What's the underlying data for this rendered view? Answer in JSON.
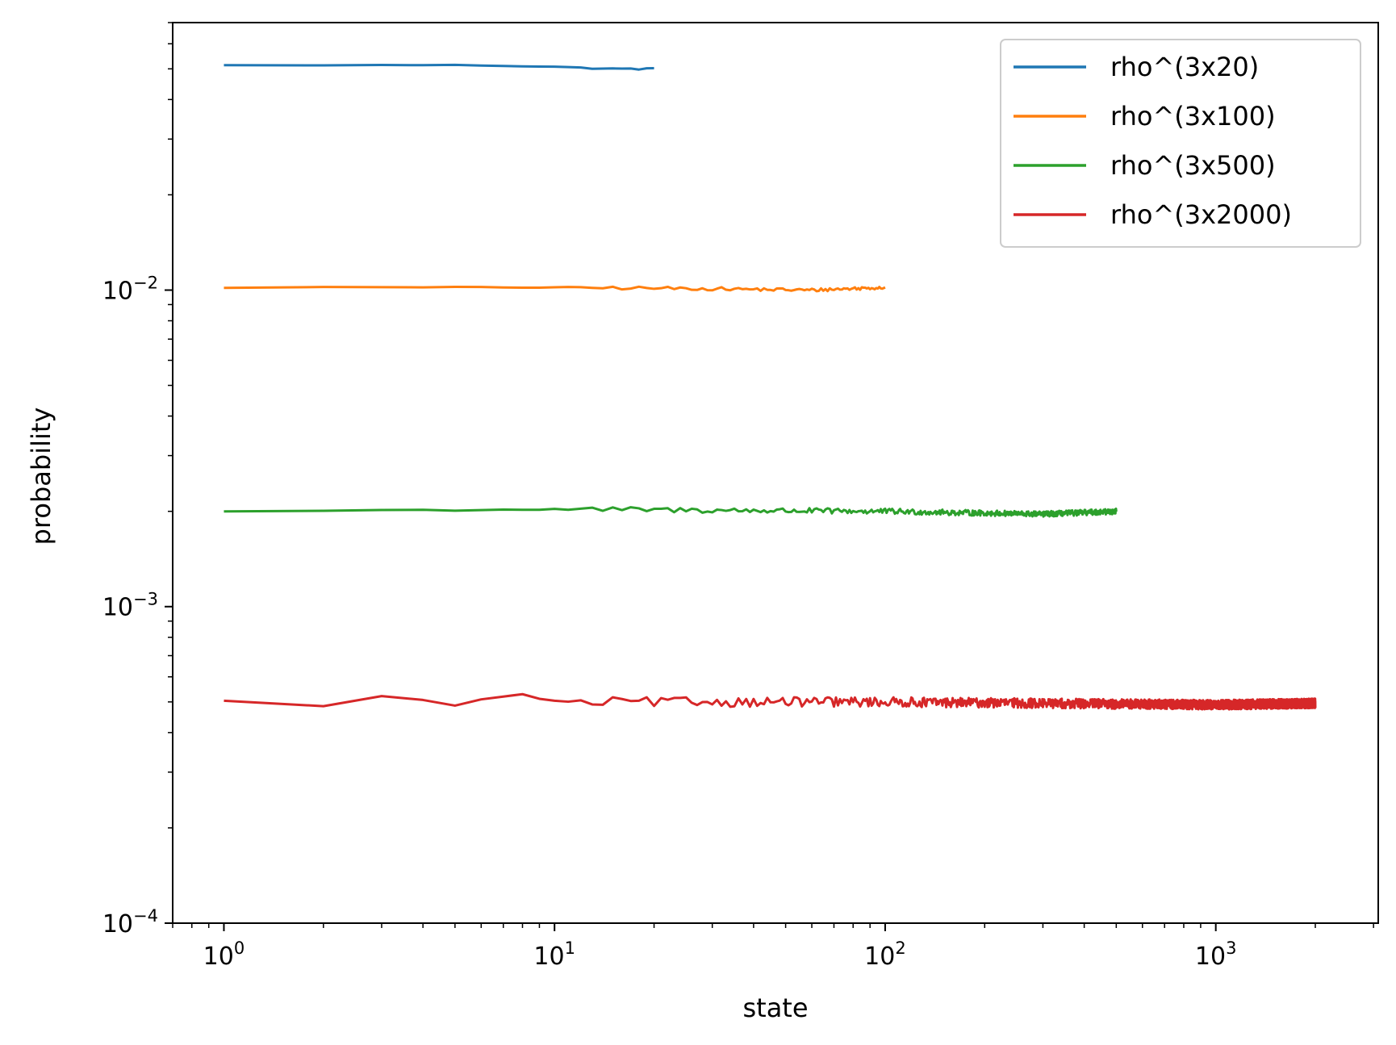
{
  "chart_data": {
    "type": "line",
    "xlabel": "state",
    "ylabel": "probability",
    "xscale": "log",
    "yscale": "log",
    "xlim": [
      0.7,
      3100
    ],
    "ylim": [
      0.0001,
      0.07
    ],
    "x_major_ticks": [
      {
        "value": 1,
        "base": "10",
        "exp": "0"
      },
      {
        "value": 10,
        "base": "10",
        "exp": "1"
      },
      {
        "value": 100,
        "base": "10",
        "exp": "2"
      },
      {
        "value": 1000,
        "base": "10",
        "exp": "3"
      }
    ],
    "y_major_ticks": [
      {
        "value": 0.0001,
        "base": "10",
        "exp": "−4"
      },
      {
        "value": 0.001,
        "base": "10",
        "exp": "−3"
      },
      {
        "value": 0.01,
        "base": "10",
        "exp": "−2"
      }
    ],
    "legend_position": "top-right",
    "series": [
      {
        "name": "rho^(3x20)",
        "color": "#1f77b4",
        "n": 20,
        "level": 0.0513,
        "anchors": [
          [
            1,
            0.0513
          ],
          [
            5,
            0.0514
          ],
          [
            10,
            0.0508
          ],
          [
            15,
            0.05
          ],
          [
            20,
            0.05
          ]
        ],
        "noise": 0.006
      },
      {
        "name": "rho^(3x100)",
        "color": "#ff7f0e",
        "n": 100,
        "level": 0.0102,
        "anchors": [
          [
            1,
            0.0102
          ],
          [
            10,
            0.0102
          ],
          [
            30,
            0.0101
          ],
          [
            60,
            0.01
          ],
          [
            100,
            0.0102
          ]
        ],
        "noise": 0.012
      },
      {
        "name": "rho^(3x500)",
        "color": "#2ca02c",
        "n": 500,
        "level": 0.002,
        "anchors": [
          [
            1,
            0.002
          ],
          [
            10,
            0.00203
          ],
          [
            100,
            0.002
          ],
          [
            300,
            0.00196
          ],
          [
            500,
            0.002
          ]
        ],
        "noise": 0.02
      },
      {
        "name": "rho^(3x2000)",
        "color": "#d62728",
        "n": 2000,
        "level": 0.0005,
        "anchors": [
          [
            1,
            0.0005
          ],
          [
            2,
            0.00049
          ],
          [
            3,
            0.00052
          ],
          [
            5,
            0.00049
          ],
          [
            8,
            0.00053
          ],
          [
            10,
            0.0005
          ],
          [
            100,
            0.0005
          ],
          [
            1000,
            0.00049
          ],
          [
            2000,
            0.000495
          ]
        ],
        "noise": 0.035
      }
    ]
  }
}
